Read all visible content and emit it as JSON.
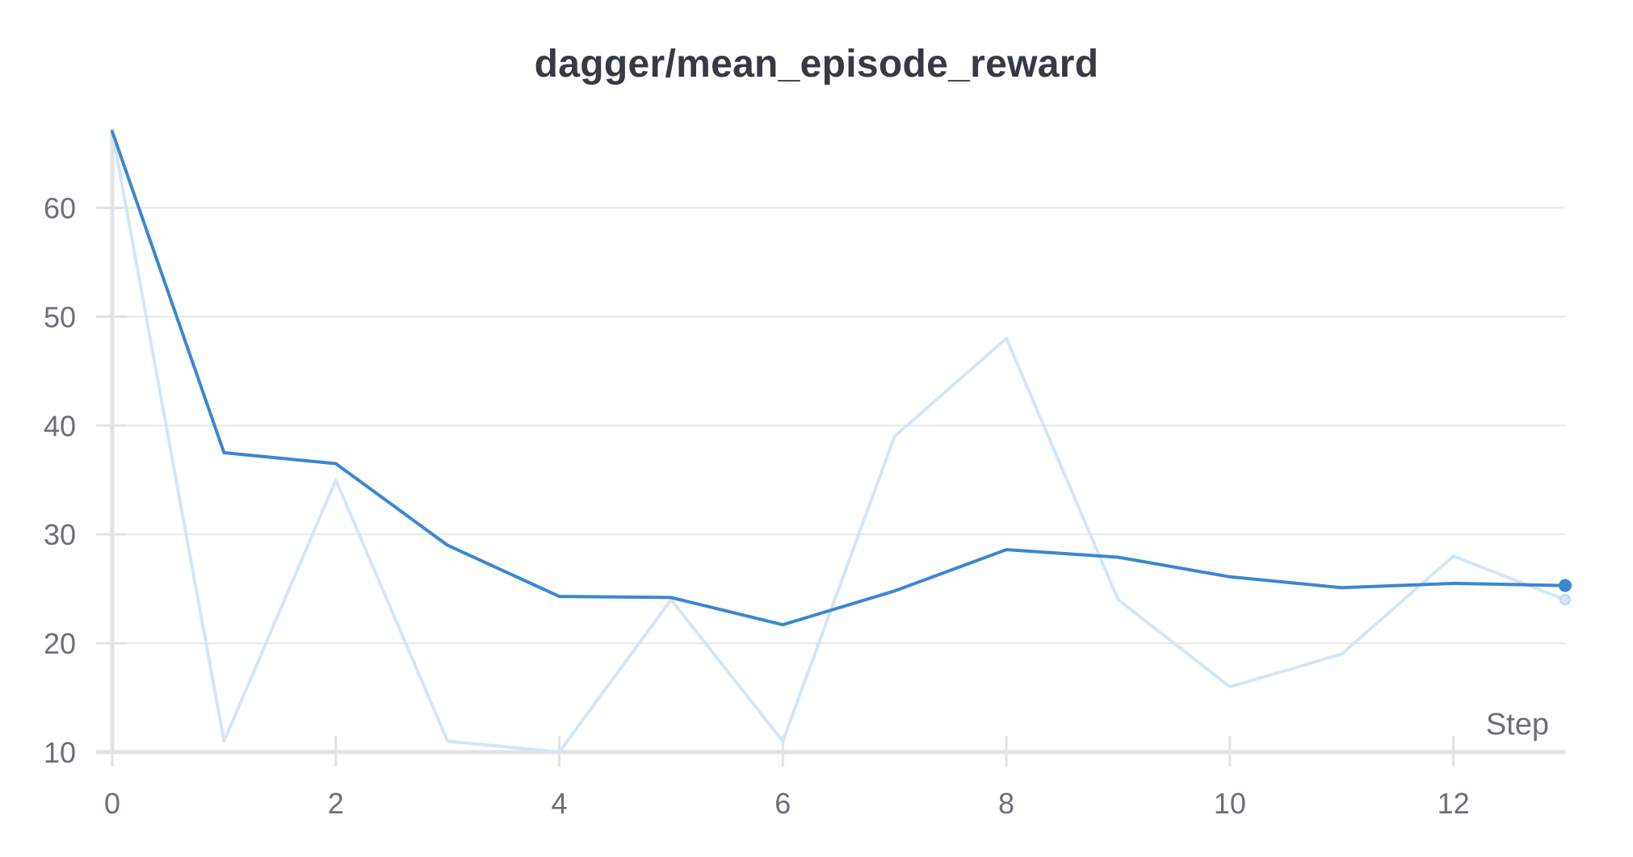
{
  "chart_data": {
    "type": "line",
    "title": "dagger/mean_episode_reward",
    "xlabel": "Step",
    "ylabel": "",
    "xlim": [
      0,
      13
    ],
    "ylim": [
      10,
      67
    ],
    "x_ticks": [
      0,
      2,
      4,
      6,
      8,
      10,
      12
    ],
    "y_ticks": [
      10,
      20,
      30,
      40,
      50,
      60
    ],
    "grid": true,
    "colors": {
      "smoothed": "#3a87d1",
      "raw": "#d4e5f5",
      "grid": "#e8e8ea",
      "axis": "#e2e2e4"
    },
    "series": [
      {
        "role": "raw",
        "x": [
          0,
          1,
          2,
          3,
          4,
          5,
          6,
          7,
          8,
          9,
          10,
          11,
          12,
          13
        ],
        "values": [
          67,
          11,
          35,
          11,
          10,
          24,
          11,
          39,
          48,
          24,
          16,
          19,
          28,
          24
        ]
      },
      {
        "role": "smoothed",
        "x": [
          0,
          1,
          2,
          3,
          4,
          5,
          6,
          7,
          8,
          9,
          10,
          11,
          12,
          13
        ],
        "values": [
          67,
          37.5,
          36.5,
          29,
          24.3,
          24.2,
          21.7,
          24.8,
          28.6,
          27.9,
          26.1,
          25.1,
          25.5,
          25.3
        ]
      }
    ]
  }
}
